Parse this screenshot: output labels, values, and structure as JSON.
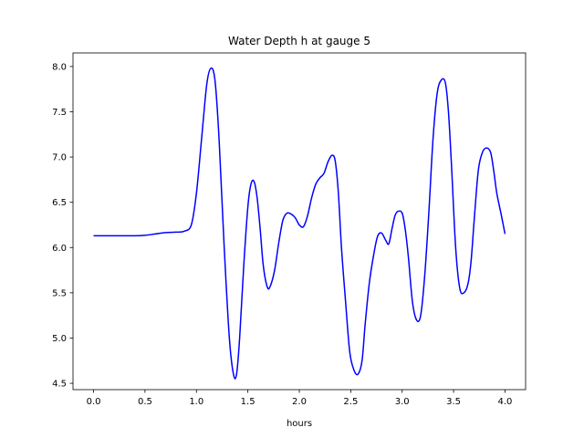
{
  "chart_data": {
    "type": "line",
    "title": "Water Depth h at gauge 5",
    "xlabel": "hours",
    "ylabel": "",
    "xlim": [
      -0.2,
      4.2
    ],
    "ylim": [
      4.43,
      8.15
    ],
    "xticks": [
      0.0,
      0.5,
      1.0,
      1.5,
      2.0,
      2.5,
      3.0,
      3.5,
      4.0
    ],
    "xtick_labels": [
      "0.0",
      "0.5",
      "1.0",
      "1.5",
      "2.0",
      "2.5",
      "3.0",
      "3.5",
      "4.0"
    ],
    "yticks": [
      4.5,
      5.0,
      5.5,
      6.0,
      6.5,
      7.0,
      7.5,
      8.0
    ],
    "ytick_labels": [
      "4.5",
      "5.0",
      "5.5",
      "6.0",
      "6.5",
      "7.0",
      "7.5",
      "8.0"
    ],
    "grid": false,
    "series": [
      {
        "color": "#0000ff",
        "x": [
          0.0,
          0.2,
          0.4,
          0.5,
          0.6,
          0.7,
          0.8,
          0.88,
          0.95,
          1.0,
          1.05,
          1.1,
          1.14,
          1.18,
          1.22,
          1.27,
          1.32,
          1.36,
          1.39,
          1.42,
          1.46,
          1.5,
          1.53,
          1.56,
          1.59,
          1.62,
          1.65,
          1.69,
          1.72,
          1.76,
          1.8,
          1.84,
          1.88,
          1.92,
          1.96,
          2.0,
          2.04,
          2.08,
          2.12,
          2.16,
          2.2,
          2.24,
          2.28,
          2.32,
          2.35,
          2.38,
          2.41,
          2.45,
          2.49,
          2.53,
          2.57,
          2.61,
          2.64,
          2.68,
          2.72,
          2.76,
          2.8,
          2.84,
          2.87,
          2.9,
          2.93,
          2.96,
          3.0,
          3.03,
          3.06,
          3.1,
          3.14,
          3.18,
          3.22,
          3.26,
          3.3,
          3.34,
          3.38,
          3.42,
          3.45,
          3.48,
          3.52,
          3.56,
          3.6,
          3.64,
          3.67,
          3.7,
          3.74,
          3.78,
          3.82,
          3.86,
          3.89,
          3.92,
          3.96,
          4.0
        ],
        "y": [
          6.13,
          6.13,
          6.13,
          6.135,
          6.15,
          6.165,
          6.17,
          6.18,
          6.25,
          6.6,
          7.2,
          7.8,
          7.98,
          7.85,
          7.2,
          6.0,
          5.0,
          4.6,
          4.6,
          5.0,
          5.8,
          6.45,
          6.7,
          6.73,
          6.55,
          6.2,
          5.8,
          5.56,
          5.58,
          5.75,
          6.05,
          6.3,
          6.38,
          6.37,
          6.33,
          6.25,
          6.23,
          6.35,
          6.55,
          6.7,
          6.77,
          6.82,
          6.95,
          7.02,
          6.95,
          6.6,
          6.0,
          5.4,
          4.85,
          4.65,
          4.6,
          4.75,
          5.15,
          5.6,
          5.9,
          6.12,
          6.16,
          6.08,
          6.04,
          6.2,
          6.35,
          6.4,
          6.38,
          6.2,
          5.9,
          5.4,
          5.2,
          5.25,
          5.7,
          6.4,
          7.2,
          7.7,
          7.85,
          7.82,
          7.5,
          6.9,
          6.0,
          5.55,
          5.5,
          5.6,
          5.85,
          6.3,
          6.85,
          7.05,
          7.1,
          7.05,
          6.85,
          6.6,
          6.38,
          6.15
        ]
      }
    ]
  }
}
